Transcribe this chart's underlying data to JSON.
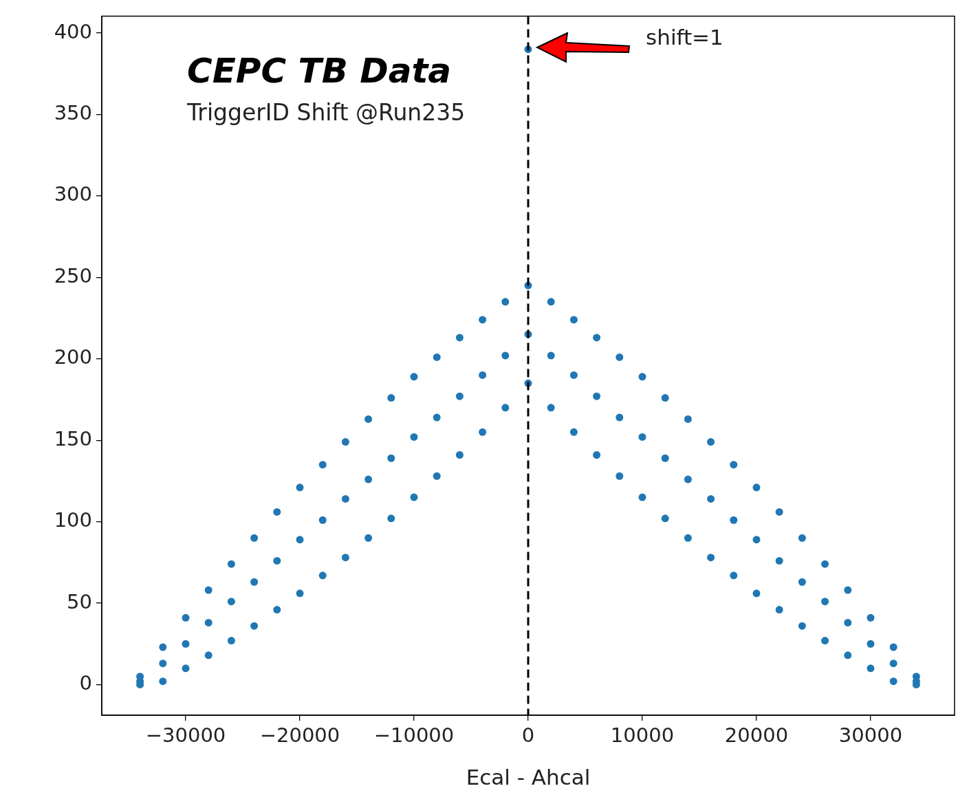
{
  "chart_data": {
    "type": "scatter",
    "title": "CEPC TB Data",
    "subtitle": "TriggerID Shift @Run235",
    "xlabel": "Ecal - Ahcal",
    "series": [
      {
        "color": "#2077b4",
        "x": [
          -34000,
          -34000,
          -34000,
          -32000,
          -32000,
          -32000,
          -30000,
          -30000,
          -30000,
          -28000,
          -28000,
          -28000,
          -26000,
          -26000,
          -26000,
          -24000,
          -24000,
          -24000,
          -22000,
          -22000,
          -22000,
          -20000,
          -20000,
          -20000,
          -18000,
          -18000,
          -18000,
          -16000,
          -16000,
          -16000,
          -14000,
          -14000,
          -14000,
          -12000,
          -12000,
          -12000,
          -10000,
          -10000,
          -10000,
          -8000,
          -8000,
          -8000,
          -6000,
          -6000,
          -6000,
          -4000,
          -4000,
          -4000,
          -2000,
          -2000,
          -2000,
          0,
          0,
          0,
          2000,
          2000,
          2000,
          4000,
          4000,
          4000,
          6000,
          6000,
          6000,
          8000,
          8000,
          8000,
          10000,
          10000,
          10000,
          12000,
          12000,
          12000,
          14000,
          14000,
          14000,
          16000,
          16000,
          16000,
          18000,
          18000,
          18000,
          20000,
          20000,
          20000,
          22000,
          22000,
          22000,
          24000,
          24000,
          24000,
          26000,
          26000,
          26000,
          28000,
          28000,
          28000,
          30000,
          30000,
          30000,
          32000,
          32000,
          32000,
          34000,
          34000,
          34000,
          0
        ],
        "values": [
          0,
          2,
          5,
          2,
          13,
          23,
          10,
          25,
          41,
          18,
          38,
          58,
          27,
          51,
          74,
          36,
          63,
          90,
          46,
          76,
          106,
          56,
          89,
          121,
          67,
          101,
          135,
          78,
          114,
          149,
          90,
          126,
          163,
          102,
          139,
          176,
          115,
          152,
          189,
          128,
          164,
          201,
          141,
          177,
          213,
          155,
          190,
          224,
          170,
          202,
          235,
          185,
          215,
          245,
          170,
          202,
          235,
          155,
          190,
          224,
          141,
          177,
          213,
          128,
          164,
          201,
          115,
          152,
          189,
          102,
          139,
          176,
          90,
          126,
          163,
          78,
          114,
          149,
          67,
          101,
          135,
          56,
          89,
          121,
          46,
          76,
          106,
          36,
          63,
          90,
          27,
          51,
          74,
          18,
          38,
          58,
          10,
          25,
          41,
          2,
          13,
          23,
          0,
          2,
          5,
          390
        ]
      }
    ],
    "xlim": [
      -37350,
      37350
    ],
    "ylim": [
      -18.8,
      410.4
    ],
    "xticks": [
      {
        "value": -30000,
        "label": "−30000"
      },
      {
        "value": -20000,
        "label": "−20000"
      },
      {
        "value": -10000,
        "label": "−10000"
      },
      0,
      10000,
      20000,
      30000
    ],
    "yticks": [
      0,
      50,
      100,
      150,
      200,
      250,
      300,
      350,
      400
    ],
    "ref_lines": [
      {
        "axis": "x",
        "value": 0,
        "color": "#000000",
        "line_style": "dashed"
      }
    ],
    "annotations": [
      "shift=1"
    ],
    "marker": "circle",
    "grid": false,
    "legend": false
  }
}
